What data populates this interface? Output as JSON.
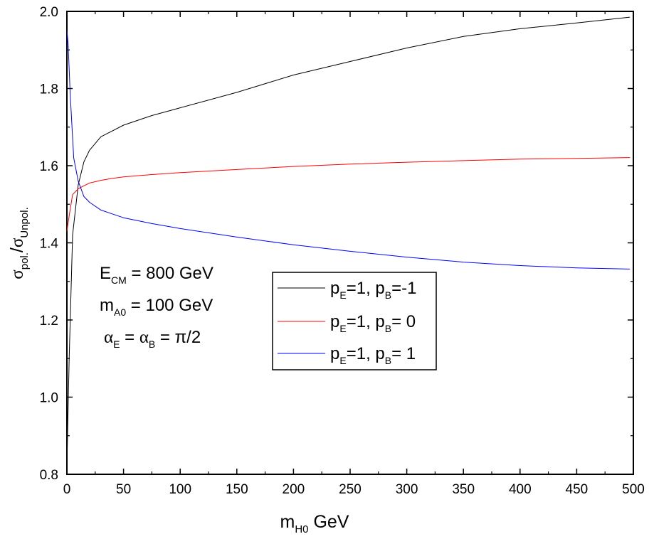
{
  "chart_data": {
    "type": "line",
    "xlabel": {
      "main": "m",
      "sub": "H0",
      "unit": " GeV"
    },
    "ylabel": {
      "num": "σ",
      "num_sub": "pol.",
      "slash": "/",
      "den": "σ",
      "den_sub": "Unpol."
    },
    "xlim": [
      0,
      500
    ],
    "ylim": [
      0.8,
      2.0
    ],
    "x_ticks": [
      "0",
      "50",
      "100",
      "150",
      "200",
      "250",
      "300",
      "350",
      "400",
      "450",
      "500"
    ],
    "y_ticks": [
      "0.8",
      "1.0",
      "1.2",
      "1.4",
      "1.6",
      "1.8",
      "2.0"
    ],
    "grid": false,
    "legend_position": "center",
    "annotations": [
      {
        "main": "E",
        "sub": "CM",
        "rest": " = 800 GeV"
      },
      {
        "main": "m",
        "sub": "A0",
        "rest": " = 100 GeV"
      },
      {
        "a1": "α",
        "s1": "E",
        "mid": " = ",
        "a2": "α",
        "s2": "B",
        "rest": " = π/2"
      }
    ],
    "series": [
      {
        "name": "p_E=1, p_B=-1",
        "label_parts": [
          "p",
          "E",
          "=1, p",
          "B",
          "=-1"
        ],
        "color": "#000000",
        "x": [
          0,
          2,
          5,
          10,
          15,
          20,
          30,
          40,
          50,
          75,
          100,
          150,
          200,
          250,
          300,
          350,
          400,
          450,
          497
        ],
        "y": [
          0.82,
          1.1,
          1.42,
          1.55,
          1.61,
          1.64,
          1.675,
          1.69,
          1.705,
          1.73,
          1.75,
          1.79,
          1.835,
          1.87,
          1.905,
          1.935,
          1.955,
          1.97,
          1.985
        ]
      },
      {
        "name": "p_E=1, p_B= 0",
        "label_parts": [
          "p",
          "E",
          "=1, p",
          "B",
          "= 0"
        ],
        "color": "#ff0000",
        "x": [
          0,
          2,
          5,
          10,
          15,
          20,
          30,
          40,
          50,
          75,
          100,
          150,
          200,
          250,
          300,
          350,
          400,
          450,
          497
        ],
        "y": [
          1.43,
          1.47,
          1.525,
          1.54,
          1.548,
          1.555,
          1.562,
          1.567,
          1.571,
          1.577,
          1.582,
          1.59,
          1.598,
          1.604,
          1.609,
          1.613,
          1.617,
          1.619,
          1.621
        ]
      },
      {
        "name": "p_E=1, p_B= 1",
        "label_parts": [
          "p",
          "E",
          "=1, p",
          "B",
          "= 1"
        ],
        "color": "#0000ff",
        "x": [
          0,
          1,
          3,
          6,
          10,
          15,
          20,
          30,
          40,
          50,
          75,
          100,
          150,
          200,
          250,
          300,
          350,
          400,
          450,
          497
        ],
        "y": [
          1.95,
          1.92,
          1.78,
          1.62,
          1.56,
          1.52,
          1.505,
          1.485,
          1.475,
          1.465,
          1.45,
          1.437,
          1.415,
          1.395,
          1.378,
          1.363,
          1.35,
          1.341,
          1.335,
          1.332
        ]
      }
    ]
  }
}
